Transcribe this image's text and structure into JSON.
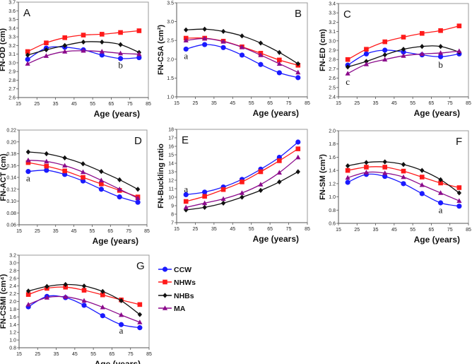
{
  "chart_data": {
    "type": "line",
    "x": [
      20,
      30,
      40,
      50,
      60,
      70,
      80
    ],
    "xlabel": "Age (years)",
    "xlim": [
      15,
      85
    ],
    "xticks": [
      15,
      25,
      35,
      45,
      55,
      65,
      75,
      85
    ],
    "series_meta": [
      {
        "name": "CCW",
        "color": "#1a1aff",
        "marker": "circle"
      },
      {
        "name": "NHWs",
        "color": "#ff1a1a",
        "marker": "square"
      },
      {
        "name": "NHBs",
        "color": "#111111",
        "marker": "diamond"
      },
      {
        "name": "MA",
        "color": "#8b0a8b",
        "marker": "triangle"
      }
    ],
    "legend": {
      "placement": "right-of-panel-G",
      "entries": [
        "CCW",
        "NHWs",
        "NHBs",
        "MA"
      ]
    },
    "panels": [
      {
        "letter": "A",
        "ylabel": "FN-OD (cm)",
        "ylim": [
          2.6,
          3.7
        ],
        "yticks": [
          "2.6",
          "2.7",
          "2.8",
          "2.9",
          "3.0",
          "3.1",
          "3.2",
          "3.3",
          "3.4",
          "3.5",
          "3.6",
          "3.7"
        ],
        "letter_pos": "top-left",
        "annotations": [
          {
            "text": "b",
            "x": 70,
            "y": 2.97
          }
        ],
        "series": [
          {
            "name": "CCW",
            "values": [
              3.04,
              3.17,
              3.18,
              3.15,
              3.09,
              3.05,
              3.06
            ]
          },
          {
            "name": "NHWs",
            "values": [
              3.13,
              3.23,
              3.29,
              3.32,
              3.33,
              3.35,
              3.37
            ]
          },
          {
            "name": "NHBs",
            "values": [
              3.09,
              3.15,
              3.2,
              3.24,
              3.24,
              3.21,
              3.12
            ]
          },
          {
            "name": "MA",
            "values": [
              2.99,
              3.08,
              3.13,
              3.14,
              3.13,
              3.11,
              3.1
            ]
          }
        ]
      },
      {
        "letter": "B",
        "ylabel": "FN-CSA (cm²)",
        "ylim": [
          1.0,
          3.5
        ],
        "yticks": [
          "1.0",
          "1.5",
          "2.0",
          "2.5",
          "3.0",
          "3.5"
        ],
        "letter_pos": "top-right",
        "annotations": [
          {
            "text": "a",
            "x": 20,
            "y": 2.08
          }
        ],
        "series": [
          {
            "name": "CCW",
            "values": [
              2.27,
              2.39,
              2.31,
              2.11,
              1.86,
              1.64,
              1.51
            ]
          },
          {
            "name": "NHWs",
            "values": [
              2.56,
              2.56,
              2.48,
              2.33,
              2.16,
              1.98,
              1.84
            ]
          },
          {
            "name": "NHBs",
            "values": [
              2.78,
              2.8,
              2.74,
              2.62,
              2.43,
              2.18,
              1.88
            ]
          },
          {
            "name": "MA",
            "values": [
              2.5,
              2.55,
              2.47,
              2.32,
              2.11,
              1.88,
              1.65
            ]
          }
        ]
      },
      {
        "letter": "C",
        "ylabel": "FN-ED (cm)",
        "ylim": [
          2.4,
          3.4
        ],
        "yticks": [
          "2.4",
          "2.5",
          "2.6",
          "2.7",
          "2.8",
          "2.9",
          "3.0",
          "3.1",
          "3.2",
          "3.3",
          "3.4"
        ],
        "letter_pos": "top-left",
        "annotations": [
          {
            "text": "b",
            "x": 70,
            "y": 2.74
          },
          {
            "text": "c",
            "x": 20,
            "y": 2.56
          }
        ],
        "series": [
          {
            "name": "CCW",
            "values": [
              2.74,
              2.86,
              2.9,
              2.88,
              2.85,
              2.83,
              2.86
            ]
          },
          {
            "name": "NHWs",
            "values": [
              2.8,
              2.91,
              2.99,
              3.04,
              3.08,
              3.11,
              3.16
            ]
          },
          {
            "name": "NHBs",
            "values": [
              2.72,
              2.78,
              2.85,
              2.91,
              2.94,
              2.94,
              2.88
            ]
          },
          {
            "name": "MA",
            "values": [
              2.65,
              2.75,
              2.8,
              2.84,
              2.86,
              2.87,
              2.89
            ]
          }
        ]
      },
      {
        "letter": "D",
        "ylabel": "FN-ACT (cm)",
        "ylim": [
          0.06,
          0.22
        ],
        "yticks": [
          "0.06",
          "0.08",
          "0.10",
          "0.12",
          "0.14",
          "0.16",
          "0.18",
          "0.20",
          "0.22"
        ],
        "letter_pos": "top-right",
        "annotations": [
          {
            "text": "a",
            "x": 20,
            "y": 0.138
          }
        ],
        "series": [
          {
            "name": "CCW",
            "values": [
              0.15,
              0.152,
              0.145,
              0.134,
              0.12,
              0.107,
              0.098
            ]
          },
          {
            "name": "NHWs",
            "values": [
              0.165,
              0.159,
              0.151,
              0.14,
              0.129,
              0.118,
              0.107
            ]
          },
          {
            "name": "NHBs",
            "values": [
              0.183,
              0.18,
              0.173,
              0.163,
              0.15,
              0.136,
              0.12
            ]
          },
          {
            "name": "MA",
            "values": [
              0.169,
              0.167,
              0.16,
              0.149,
              0.135,
              0.12,
              0.105
            ]
          }
        ]
      },
      {
        "letter": "E",
        "ylabel": "FN-Buckling ratio",
        "ylim": [
          7,
          18
        ],
        "yticks": [
          "7",
          "8",
          "9",
          "10",
          "11",
          "12",
          "13",
          "14",
          "15",
          "16",
          "17",
          "18"
        ],
        "letter_pos": "top-left",
        "annotations": [
          {
            "text": "a",
            "x": 20,
            "y": 10.9
          }
        ],
        "series": [
          {
            "name": "CCW",
            "values": [
              10.3,
              10.6,
              11.2,
              12.1,
              13.3,
              14.7,
              16.5
            ]
          },
          {
            "name": "NHWs",
            "values": [
              9.5,
              10.1,
              10.9,
              11.8,
              13.0,
              14.3,
              15.7
            ]
          },
          {
            "name": "NHBs",
            "values": [
              8.5,
              8.8,
              9.3,
              10.0,
              10.8,
              11.8,
              13.0
            ]
          },
          {
            "name": "MA",
            "values": [
              8.8,
              9.3,
              9.8,
              10.5,
              11.5,
              12.9,
              14.7
            ]
          }
        ]
      },
      {
        "letter": "F",
        "ylabel": "FN-SM (cm³)",
        "ylim": [
          0.6,
          2.0
        ],
        "yticks": [
          "0.6",
          "0.8",
          "1.0",
          "1.2",
          "1.4",
          "1.6",
          "1.8",
          "2.0"
        ],
        "letter_pos": "top-right",
        "annotations": [
          {
            "text": "a",
            "x": 70,
            "y": 0.8
          }
        ],
        "series": [
          {
            "name": "CCW",
            "values": [
              1.22,
              1.34,
              1.31,
              1.2,
              1.05,
              0.91,
              0.86
            ]
          },
          {
            "name": "NHWs",
            "values": [
              1.4,
              1.45,
              1.45,
              1.39,
              1.3,
              1.21,
              1.14
            ]
          },
          {
            "name": "NHBs",
            "values": [
              1.47,
              1.52,
              1.53,
              1.49,
              1.4,
              1.26,
              1.06
            ]
          },
          {
            "name": "MA",
            "values": [
              1.29,
              1.37,
              1.36,
              1.3,
              1.18,
              1.06,
              0.94
            ]
          }
        ]
      },
      {
        "letter": "G",
        "ylabel": "FN-CSMI (cm⁴)",
        "ylim": [
          0.8,
          3.2
        ],
        "yticks": [
          "0.8",
          "1.0",
          "1.2",
          "1.4",
          "1.6",
          "1.8",
          "2.0",
          "2.2",
          "2.4",
          "2.6",
          "2.8",
          "3.0",
          "3.2"
        ],
        "letter_pos": "top-right",
        "annotations": [
          {
            "text": "a",
            "x": 70,
            "y": 1.24
          }
        ],
        "series": [
          {
            "name": "CCW",
            "values": [
              1.86,
              2.13,
              2.1,
              1.9,
              1.63,
              1.4,
              1.32
            ]
          },
          {
            "name": "NHWs",
            "values": [
              2.18,
              2.34,
              2.37,
              2.29,
              2.17,
              2.04,
              1.92
            ]
          },
          {
            "name": "NHBs",
            "values": [
              2.27,
              2.39,
              2.44,
              2.4,
              2.26,
              2.02,
              1.66
            ]
          },
          {
            "name": "MA",
            "values": [
              1.92,
              2.1,
              2.12,
              2.02,
              1.85,
              1.65,
              1.46
            ]
          }
        ]
      }
    ]
  }
}
